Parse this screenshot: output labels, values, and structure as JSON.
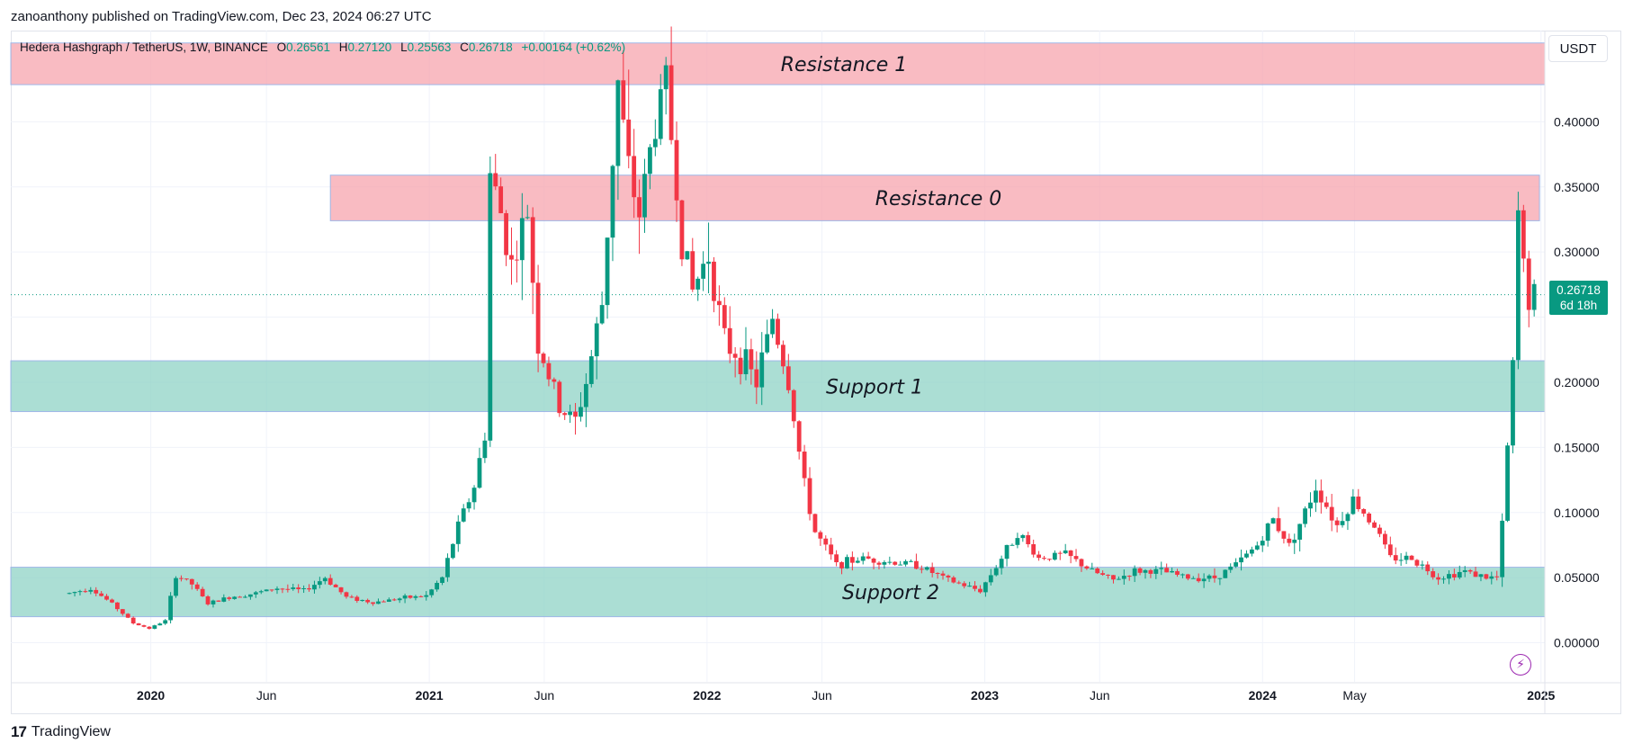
{
  "publish_line": "zanoanthony published on TradingView.com, Dec 23, 2024 06:27 UTC",
  "legend": {
    "symbol": "Hedera Hashgraph / TetherUS, 1W, BINANCE",
    "o_label": "O",
    "o": "0.26561",
    "h_label": "H",
    "h": "0.27120",
    "l_label": "L",
    "l": "0.25563",
    "c_label": "C",
    "c": "0.26718",
    "change": "+0.00164 (+0.62%)"
  },
  "currency_button": "USDT",
  "last_price": {
    "value": "0.26718",
    "countdown": "6d 18h"
  },
  "footer": {
    "brand": "TradingView",
    "logo_glyph": "17"
  },
  "colors": {
    "up": "#089981",
    "down": "#f23645",
    "resistance_fill": "#f7a4ad",
    "support_fill": "#8fd3c6",
    "grid": "#f0f3fa",
    "text": "#131722"
  },
  "chart_data": {
    "type": "candlestick",
    "y_axis": {
      "min": -0.03,
      "max": 0.47,
      "ticks": [
        0.0,
        0.05,
        0.1,
        0.15,
        0.2,
        0.25,
        0.3,
        0.35,
        0.4
      ],
      "tick_labels": [
        "0.00000",
        "0.05000",
        "0.10000",
        "0.15000",
        "0.20000",
        "",
        "0.30000",
        "0.35000",
        "0.40000"
      ]
    },
    "x_axis": {
      "start": "2019-07-01",
      "end": "2025-01-06",
      "ticks": [
        {
          "date": "2020-01-01",
          "label": "2020",
          "bold": true
        },
        {
          "date": "2020-06-01",
          "label": "Jun",
          "bold": false
        },
        {
          "date": "2021-01-01",
          "label": "2021",
          "bold": true
        },
        {
          "date": "2021-06-01",
          "label": "Jun",
          "bold": false
        },
        {
          "date": "2022-01-01",
          "label": "2022",
          "bold": true
        },
        {
          "date": "2022-06-01",
          "label": "Jun",
          "bold": false
        },
        {
          "date": "2023-01-01",
          "label": "2023",
          "bold": true
        },
        {
          "date": "2023-06-01",
          "label": "Jun",
          "bold": false
        },
        {
          "date": "2024-01-01",
          "label": "2024",
          "bold": true
        },
        {
          "date": "2024-05-01",
          "label": "May",
          "bold": false
        },
        {
          "date": "2025-01-01",
          "label": "2025",
          "bold": true
        }
      ]
    },
    "zones": [
      {
        "label": "Resistance 1",
        "from": 0.4285,
        "to": 0.4605,
        "start": "2019-07-01",
        "end": "2025-01-06",
        "kind": "resistance"
      },
      {
        "label": "Resistance 0",
        "from": 0.324,
        "to": 0.359,
        "start": "2020-08-24",
        "end": "2024-12-30",
        "kind": "resistance"
      },
      {
        "label": "Support 1",
        "from": 0.1775,
        "to": 0.2165,
        "start": "2019-07-01",
        "end": "2025-01-06",
        "kind": "support"
      },
      {
        "label": "Support 2",
        "from": 0.02,
        "to": 0.058,
        "start": "2019-07-01",
        "end": "2025-01-06",
        "kind": "support"
      }
    ],
    "last_price_line": 0.26718,
    "price_path_points": [
      [
        "2019-09-16",
        0.038
      ],
      [
        "2019-10-14",
        0.042
      ],
      [
        "2019-11-11",
        0.03
      ],
      [
        "2019-12-09",
        0.015
      ],
      [
        "2019-12-30",
        0.011
      ],
      [
        "2020-01-20",
        0.017
      ],
      [
        "2020-02-03",
        0.052
      ],
      [
        "2020-02-24",
        0.045
      ],
      [
        "2020-03-16",
        0.03
      ],
      [
        "2020-04-13",
        0.035
      ],
      [
        "2020-05-18",
        0.038
      ],
      [
        "2020-06-15",
        0.042
      ],
      [
        "2020-07-20",
        0.04
      ],
      [
        "2020-08-17",
        0.05
      ],
      [
        "2020-09-14",
        0.035
      ],
      [
        "2020-10-19",
        0.031
      ],
      [
        "2020-11-23",
        0.034
      ],
      [
        "2020-12-28",
        0.036
      ],
      [
        "2021-01-18",
        0.05
      ],
      [
        "2021-02-08",
        0.09
      ],
      [
        "2021-03-01",
        0.12
      ],
      [
        "2021-03-15",
        0.16
      ],
      [
        "2021-03-22",
        0.36
      ],
      [
        "2021-04-05",
        0.33
      ],
      [
        "2021-04-19",
        0.29
      ],
      [
        "2021-05-10",
        0.33
      ],
      [
        "2021-05-24",
        0.23
      ],
      [
        "2021-06-21",
        0.18
      ],
      [
        "2021-07-12",
        0.17
      ],
      [
        "2021-07-26",
        0.2
      ],
      [
        "2021-08-16",
        0.26
      ],
      [
        "2021-09-06",
        0.43
      ],
      [
        "2021-09-20",
        0.36
      ],
      [
        "2021-10-04",
        0.33
      ],
      [
        "2021-10-25",
        0.4
      ],
      [
        "2021-11-08",
        0.43
      ],
      [
        "2021-11-29",
        0.31
      ],
      [
        "2021-12-13",
        0.27
      ],
      [
        "2022-01-03",
        0.3
      ],
      [
        "2022-01-24",
        0.23
      ],
      [
        "2022-02-14",
        0.22
      ],
      [
        "2022-03-07",
        0.2
      ],
      [
        "2022-03-28",
        0.25
      ],
      [
        "2022-04-18",
        0.2
      ],
      [
        "2022-05-09",
        0.12
      ],
      [
        "2022-05-23",
        0.085
      ],
      [
        "2022-06-20",
        0.06
      ],
      [
        "2022-07-25",
        0.065
      ],
      [
        "2022-08-29",
        0.062
      ],
      [
        "2022-10-03",
        0.06
      ],
      [
        "2022-11-14",
        0.048
      ],
      [
        "2022-12-26",
        0.04
      ],
      [
        "2023-01-23",
        0.065
      ],
      [
        "2023-02-13",
        0.085
      ],
      [
        "2023-03-13",
        0.065
      ],
      [
        "2023-04-17",
        0.068
      ],
      [
        "2023-05-22",
        0.055
      ],
      [
        "2023-06-19",
        0.048
      ],
      [
        "2023-07-17",
        0.055
      ],
      [
        "2023-08-21",
        0.055
      ],
      [
        "2023-09-25",
        0.05
      ],
      [
        "2023-10-30",
        0.05
      ],
      [
        "2023-11-27",
        0.06
      ],
      [
        "2023-12-25",
        0.075
      ],
      [
        "2024-01-15",
        0.095
      ],
      [
        "2024-02-05",
        0.075
      ],
      [
        "2024-02-26",
        0.1
      ],
      [
        "2024-03-11",
        0.12
      ],
      [
        "2024-04-08",
        0.09
      ],
      [
        "2024-04-29",
        0.11
      ],
      [
        "2024-05-27",
        0.09
      ],
      [
        "2024-06-17",
        0.065
      ],
      [
        "2024-07-15",
        0.065
      ],
      [
        "2024-08-19",
        0.05
      ],
      [
        "2024-09-23",
        0.055
      ],
      [
        "2024-10-21",
        0.05
      ],
      [
        "2024-11-04",
        0.05
      ],
      [
        "2024-11-11",
        0.09
      ],
      [
        "2024-11-18",
        0.15
      ],
      [
        "2024-11-25",
        0.21
      ],
      [
        "2024-12-02",
        0.33
      ],
      [
        "2024-12-09",
        0.29
      ],
      [
        "2024-12-16",
        0.265
      ],
      [
        "2024-12-23",
        0.267
      ]
    ]
  }
}
